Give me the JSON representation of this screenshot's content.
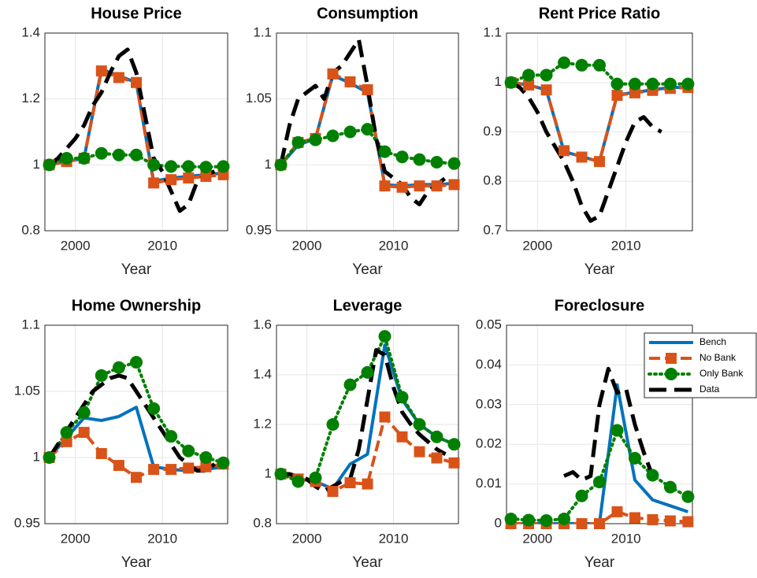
{
  "chart_data": [
    {
      "type": "line",
      "title": "House Price",
      "xlabel": "Year",
      "grid": true,
      "xlim": [
        1996.5,
        2017.5
      ],
      "xticks": [
        2000,
        2010
      ],
      "ylim": [
        0.8,
        1.4
      ],
      "yticks": [
        0.8,
        1,
        1.2,
        1.4
      ],
      "x": [
        1997,
        1999,
        2001,
        2003,
        2005,
        2007,
        2009,
        2011,
        2013,
        2015,
        2017
      ],
      "series": [
        {
          "color": "#0072bd",
          "linestyle": "solid",
          "marker": "none",
          "values": [
            1,
            1.01,
            1.02,
            1.29,
            1.27,
            1.25,
            0.95,
            0.96,
            0.965,
            0.97,
            0.975
          ]
        },
        {
          "color": "#d95319",
          "linestyle": "dash",
          "marker": "square",
          "values": [
            1,
            1.01,
            1.02,
            1.285,
            1.265,
            1.25,
            0.945,
            0.955,
            0.96,
            0.965,
            0.97
          ]
        },
        {
          "color": "#008000",
          "linestyle": "dot",
          "marker": "circle",
          "values": [
            1,
            1.02,
            1.02,
            1.035,
            1.03,
            1.03,
            1.0,
            0.995,
            0.995,
            0.993,
            0.995
          ]
        },
        {
          "color": "#000000",
          "linestyle": "longdash",
          "marker": "none",
          "x": [
            1997,
            1998,
            1999,
            2000,
            2001,
            2002,
            2003,
            2004,
            2005,
            2006,
            2007,
            2008,
            2009,
            2010,
            2011,
            2012,
            2013,
            2014,
            2015,
            2016
          ],
          "values": [
            1,
            1.02,
            1.05,
            1.08,
            1.12,
            1.18,
            1.22,
            1.28,
            1.33,
            1.35,
            1.28,
            1.15,
            1.02,
            0.98,
            0.92,
            0.86,
            0.88,
            0.95,
            0.97,
            0.98
          ]
        }
      ]
    },
    {
      "type": "line",
      "title": "Consumption",
      "xlabel": "Year",
      "grid": true,
      "xlim": [
        1996.5,
        2017.5
      ],
      "xticks": [
        2000,
        2010
      ],
      "ylim": [
        0.95,
        1.1
      ],
      "yticks": [
        0.95,
        1,
        1.05,
        1.1
      ],
      "x": [
        1997,
        1999,
        2001,
        2003,
        2005,
        2007,
        2009,
        2011,
        2013,
        2015,
        2017
      ],
      "series": [
        {
          "color": "#0072bd",
          "linestyle": "solid",
          "marker": "none",
          "values": [
            1,
            1.015,
            1.02,
            1.068,
            1.062,
            1.055,
            0.985,
            0.984,
            0.985,
            0.985,
            0.986
          ]
        },
        {
          "color": "#d95319",
          "linestyle": "dash",
          "marker": "square",
          "values": [
            1,
            1.017,
            1.02,
            1.069,
            1.063,
            1.057,
            0.984,
            0.983,
            0.984,
            0.984,
            0.985
          ]
        },
        {
          "color": "#008000",
          "linestyle": "dot",
          "marker": "circle",
          "values": [
            1,
            1.017,
            1.019,
            1.022,
            1.025,
            1.027,
            1.01,
            1.006,
            1.004,
            1.002,
            1.001
          ]
        },
        {
          "color": "#000000",
          "linestyle": "longdash",
          "marker": "none",
          "x": [
            1997,
            1998,
            1999,
            2000,
            2001,
            2002,
            2003,
            2004,
            2005,
            2006,
            2007,
            2008,
            2009,
            2010,
            2011,
            2012,
            2013,
            2014,
            2015,
            2016
          ],
          "values": [
            1,
            1.03,
            1.05,
            1.055,
            1.06,
            1.05,
            1.07,
            1.075,
            1.085,
            1.095,
            1.06,
            1.02,
            0.995,
            0.99,
            0.985,
            0.975,
            0.97,
            0.98,
            0.985,
            0.99
          ]
        }
      ]
    },
    {
      "type": "line",
      "title": "Rent Price Ratio",
      "xlabel": "Year",
      "grid": true,
      "xlim": [
        1996.5,
        2017.5
      ],
      "xticks": [
        2000,
        2010
      ],
      "ylim": [
        0.7,
        1.1
      ],
      "yticks": [
        0.7,
        0.8,
        0.9,
        1,
        1.1
      ],
      "x": [
        1997,
        1999,
        2001,
        2003,
        2005,
        2007,
        2009,
        2011,
        2013,
        2015,
        2017
      ],
      "series": [
        {
          "color": "#0072bd",
          "linestyle": "solid",
          "marker": "none",
          "values": [
            1,
            0.995,
            0.985,
            0.86,
            0.85,
            0.84,
            0.975,
            0.98,
            0.985,
            0.99,
            0.99
          ]
        },
        {
          "color": "#d95319",
          "linestyle": "dash",
          "marker": "square",
          "values": [
            1,
            0.995,
            0.985,
            0.862,
            0.849,
            0.84,
            0.974,
            0.979,
            0.984,
            0.988,
            0.99
          ]
        },
        {
          "color": "#008000",
          "linestyle": "dot",
          "marker": "circle",
          "values": [
            1,
            1.015,
            1.015,
            1.04,
            1.035,
            1.035,
            0.997,
            0.997,
            0.997,
            0.997,
            0.997
          ]
        },
        {
          "color": "#000000",
          "linestyle": "longdash",
          "marker": "none",
          "x": [
            1997,
            1998,
            1999,
            2000,
            2001,
            2002,
            2003,
            2004,
            2005,
            2006,
            2007,
            2008,
            2009,
            2010,
            2011,
            2012,
            2013,
            2014,
            2015,
            2016
          ],
          "values": [
            1,
            0.99,
            0.97,
            0.94,
            0.9,
            0.87,
            0.84,
            0.8,
            0.75,
            0.72,
            0.73,
            0.78,
            0.83,
            0.88,
            0.92,
            0.93,
            0.91,
            0.9,
            null,
            null
          ]
        }
      ]
    },
    {
      "type": "line",
      "title": "Home Ownership",
      "xlabel": "Year",
      "grid": true,
      "xlim": [
        1996.5,
        2017.5
      ],
      "xticks": [
        2000,
        2010
      ],
      "ylim": [
        0.95,
        1.1
      ],
      "yticks": [
        0.95,
        1,
        1.05,
        1.1
      ],
      "x": [
        1997,
        1999,
        2001,
        2003,
        2005,
        2007,
        2009,
        2011,
        2013,
        2015,
        2017
      ],
      "series": [
        {
          "color": "#0072bd",
          "linestyle": "solid",
          "marker": "none",
          "values": [
            1,
            1.015,
            1.03,
            1.028,
            1.031,
            1.038,
            0.993,
            0.991,
            0.99,
            0.991,
            0.993
          ]
        },
        {
          "color": "#d95319",
          "linestyle": "dash",
          "marker": "square",
          "values": [
            1,
            1.012,
            1.019,
            1.003,
            0.994,
            0.985,
            0.991,
            0.991,
            0.992,
            0.993,
            0.995
          ]
        },
        {
          "color": "#008000",
          "linestyle": "dot",
          "marker": "circle",
          "values": [
            1,
            1.019,
            1.034,
            1.062,
            1.068,
            1.072,
            1.037,
            1.016,
            1.005,
            1.0,
            0.996
          ]
        },
        {
          "color": "#000000",
          "linestyle": "longdash",
          "marker": "none",
          "x": [
            1997,
            1998,
            1999,
            2000,
            2001,
            2002,
            2003,
            2004,
            2005,
            2006,
            2007,
            2008,
            2009,
            2010,
            2011,
            2012,
            2013,
            2014,
            2015,
            2016
          ],
          "values": [
            1,
            1.01,
            1.02,
            1.03,
            1.04,
            1.05,
            1.055,
            1.06,
            1.062,
            1.06,
            1.05,
            1.04,
            1.03,
            1.02,
            1.01,
            1.0,
            0.995,
            0.99,
            0.99,
            0.995
          ]
        }
      ]
    },
    {
      "type": "line",
      "title": "Leverage",
      "xlabel": "Year",
      "grid": true,
      "xlim": [
        1996.5,
        2017.5
      ],
      "xticks": [
        2000,
        2010
      ],
      "ylim": [
        0.8,
        1.6
      ],
      "yticks": [
        0.8,
        1,
        1.2,
        1.4,
        1.6
      ],
      "x": [
        1997,
        1999,
        2001,
        2003,
        2005,
        2007,
        2009,
        2011,
        2013,
        2015,
        2017
      ],
      "series": [
        {
          "color": "#0072bd",
          "linestyle": "solid",
          "marker": "none",
          "values": [
            1,
            0.98,
            0.97,
            0.94,
            1.04,
            1.08,
            1.52,
            1.3,
            1.2,
            1.15,
            1.12
          ]
        },
        {
          "color": "#d95319",
          "linestyle": "dash",
          "marker": "square",
          "values": [
            1,
            0.98,
            0.97,
            0.93,
            0.965,
            0.96,
            1.23,
            1.15,
            1.09,
            1.065,
            1.045
          ]
        },
        {
          "color": "#008000",
          "linestyle": "dot",
          "marker": "circle",
          "values": [
            1,
            0.97,
            0.985,
            1.2,
            1.36,
            1.41,
            1.555,
            1.31,
            1.2,
            1.15,
            1.12
          ]
        },
        {
          "color": "#000000",
          "linestyle": "longdash",
          "marker": "none",
          "x": [
            1997,
            1998,
            1999,
            2000,
            2001,
            2002,
            2003,
            2004,
            2005,
            2006,
            2007,
            2008,
            2009,
            2010,
            2011,
            2012,
            2013,
            2014,
            2015,
            2016
          ],
          "values": [
            1,
            1,
            0.99,
            0.98,
            0.95,
            0.93,
            0.95,
            0.97,
            0.98,
            1.1,
            1.3,
            1.5,
            1.48,
            1.35,
            1.25,
            1.2,
            1.16,
            1.13,
            1.1,
            1.08
          ]
        }
      ]
    },
    {
      "type": "line",
      "title": "Foreclosure",
      "xlabel": "Year",
      "grid": true,
      "legend": "northeast",
      "xlim": [
        1996.5,
        2017.5
      ],
      "xticks": [
        2000,
        2010
      ],
      "ylim": [
        0,
        0.05
      ],
      "yticks": [
        0,
        0.01,
        0.02,
        0.03,
        0.04,
        0.05
      ],
      "x": [
        1997,
        1999,
        2001,
        2003,
        2005,
        2007,
        2009,
        2011,
        2013,
        2015,
        2017
      ],
      "series": [
        {
          "name": "Bench",
          "color": "#0072bd",
          "linestyle": "solid",
          "marker": "none",
          "values": [
            0,
            0,
            0,
            0,
            0,
            0,
            0.035,
            0.011,
            0.006,
            0.0045,
            0.003
          ]
        },
        {
          "name": "No Bank",
          "color": "#d95319",
          "linestyle": "dash",
          "marker": "square",
          "values": [
            0,
            0,
            0,
            0,
            0,
            0,
            0.003,
            0.0015,
            0.001,
            0.0007,
            0.0005
          ]
        },
        {
          "name": "Only Bank",
          "color": "#008000",
          "linestyle": "dot",
          "marker": "circle",
          "values": [
            0.0012,
            0.0009,
            0.0008,
            0.0012,
            0.007,
            0.0105,
            0.0235,
            0.0165,
            0.0122,
            0.0092,
            0.0068
          ]
        },
        {
          "name": "Data",
          "color": "#000000",
          "linestyle": "longdash",
          "marker": "none",
          "x": [
            2003,
            2004,
            2005,
            2006,
            2007,
            2008,
            2009,
            2010,
            2011,
            2012,
            2013
          ],
          "values": [
            0.012,
            0.013,
            0.011,
            0.012,
            0.03,
            0.039,
            0.033,
            0.034,
            0.025,
            0.018,
            0.012
          ]
        }
      ]
    }
  ]
}
